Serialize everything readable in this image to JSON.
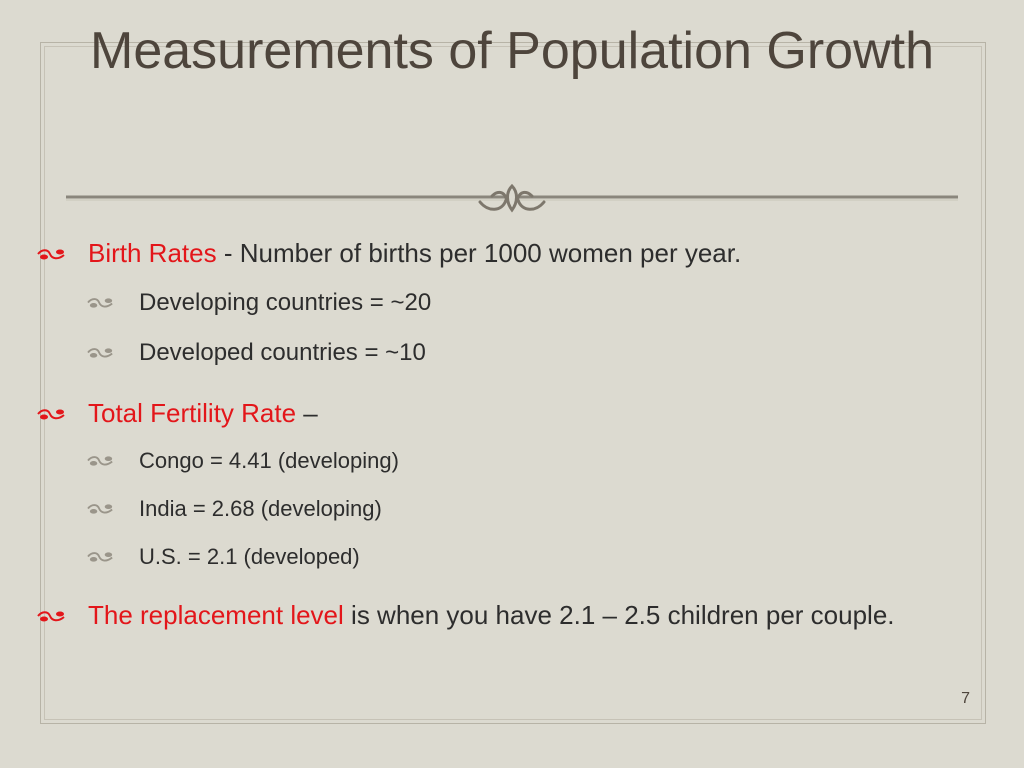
{
  "slide": {
    "title": "Measurements of Population Growth",
    "page_number": "7",
    "colors": {
      "background": "#dcdad0",
      "title": "#4e453c",
      "highlight": "#e3161a",
      "body": "#2d2d2d"
    },
    "bullet_icon": "fleuron-icon"
  },
  "bullets": {
    "birth": {
      "term": "Birth Rates",
      "rest": " - Number of births per 1000 women per year.",
      "sub": [
        "Developing countries = ~20",
        "Developed countries = ~10"
      ]
    },
    "tfr": {
      "term": "Total Fertility Rate",
      "rest": " –",
      "sub": [
        "Congo = 4.41 (developing)",
        "India = 2.68 (developing)",
        "U.S. = 2.1 (developed)"
      ]
    },
    "replacement": {
      "term": "The replacement level",
      "rest": " is when you have 2.1 – 2.5 children per couple."
    }
  }
}
